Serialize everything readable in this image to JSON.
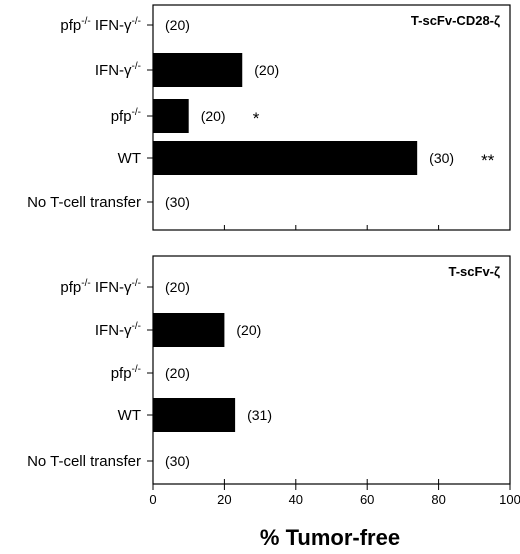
{
  "chart_data": [
    {
      "type": "bar",
      "orientation": "horizontal",
      "title": "T-scFv-CD28-ζ",
      "categories": [
        {
          "base": "pfp",
          "sup": "-/-",
          "base2": " IFN-γ",
          "sup2": "-/-"
        },
        {
          "base": "IFN-γ",
          "sup": "-/-",
          "base2": "",
          "sup2": ""
        },
        {
          "base": "pfp",
          "sup": "-/-",
          "base2": "",
          "sup2": ""
        },
        {
          "base": "WT",
          "sup": "",
          "base2": "",
          "sup2": ""
        },
        {
          "base": "No T-cell transfer",
          "sup": "",
          "base2": "",
          "sup2": ""
        }
      ],
      "values": [
        0,
        25,
        10,
        74,
        0
      ],
      "n_labels": [
        "(20)",
        "(20)",
        "(20)",
        "(30)",
        "(30)"
      ],
      "significance": [
        "",
        "",
        "*",
        "**",
        ""
      ],
      "xlim": [
        0,
        100
      ]
    },
    {
      "type": "bar",
      "orientation": "horizontal",
      "title": "T-scFv-ζ",
      "categories": [
        {
          "base": "pfp",
          "sup": "-/-",
          "base2": " IFN-γ",
          "sup2": "-/-"
        },
        {
          "base": "IFN-γ",
          "sup": "-/-",
          "base2": "",
          "sup2": ""
        },
        {
          "base": "pfp",
          "sup": "-/-",
          "base2": "",
          "sup2": ""
        },
        {
          "base": "WT",
          "sup": "",
          "base2": "",
          "sup2": ""
        },
        {
          "base": "No T-cell transfer",
          "sup": "",
          "base2": "",
          "sup2": ""
        }
      ],
      "values": [
        0,
        20,
        0,
        23,
        0
      ],
      "n_labels": [
        "(20)",
        "(20)",
        "(20)",
        "(31)",
        "(30)"
      ],
      "significance": [
        "",
        "",
        "",
        "",
        ""
      ],
      "xlim": [
        0,
        100
      ]
    }
  ],
  "axis": {
    "xlabel": "% Tumor-free",
    "ticks": [
      0,
      20,
      40,
      60,
      80,
      100
    ]
  },
  "colors": {
    "bar": "#000000",
    "axis": "#000000",
    "background": "#ffffff"
  }
}
